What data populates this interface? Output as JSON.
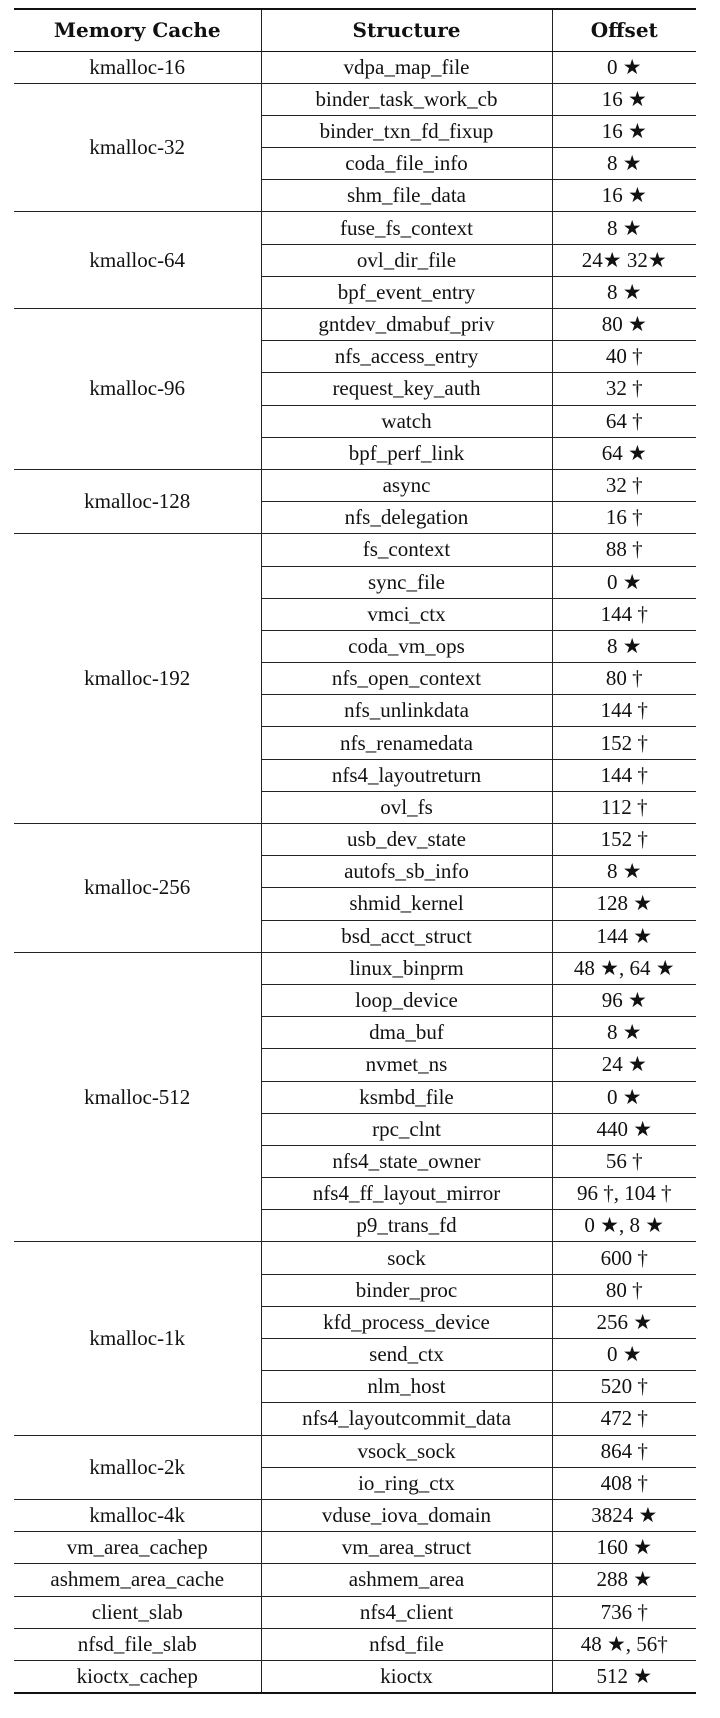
{
  "headers": {
    "cache": "Memory Cache",
    "structure": "Structure",
    "offset": "Offset"
  },
  "groups": [
    {
      "cache": "kmalloc-16",
      "rows": [
        {
          "structure": "vdpa_map_file",
          "offset": "0 ★"
        }
      ]
    },
    {
      "cache": "kmalloc-32",
      "rows": [
        {
          "structure": "binder_task_work_cb",
          "offset": "16 ★"
        },
        {
          "structure": "binder_txn_fd_fixup",
          "offset": "16 ★"
        },
        {
          "structure": "coda_file_info",
          "offset": "8 ★"
        },
        {
          "structure": "shm_file_data",
          "offset": "16 ★"
        }
      ]
    },
    {
      "cache": "kmalloc-64",
      "rows": [
        {
          "structure": "fuse_fs_context",
          "offset": "8 ★"
        },
        {
          "structure": "ovl_dir_file",
          "offset": "24★ 32★"
        },
        {
          "structure": "bpf_event_entry",
          "offset": "8 ★"
        }
      ]
    },
    {
      "cache": "kmalloc-96",
      "rows": [
        {
          "structure": "gntdev_dmabuf_priv",
          "offset": "80 ★"
        },
        {
          "structure": "nfs_access_entry",
          "offset": "40 †"
        },
        {
          "structure": "request_key_auth",
          "offset": "32 †"
        },
        {
          "structure": "watch",
          "offset": "64 †"
        },
        {
          "structure": "bpf_perf_link",
          "offset": "64 ★"
        }
      ]
    },
    {
      "cache": "kmalloc-128",
      "rows": [
        {
          "structure": "async",
          "offset": "32 †"
        },
        {
          "structure": "nfs_delegation",
          "offset": "16 †"
        }
      ]
    },
    {
      "cache": "kmalloc-192",
      "rows": [
        {
          "structure": "fs_context",
          "offset": "88 †"
        },
        {
          "structure": "sync_file",
          "offset": "0 ★"
        },
        {
          "structure": "vmci_ctx",
          "offset": "144 †"
        },
        {
          "structure": "coda_vm_ops",
          "offset": "8 ★"
        },
        {
          "structure": "nfs_open_context",
          "offset": "80 †"
        },
        {
          "structure": "nfs_unlinkdata",
          "offset": "144 †"
        },
        {
          "structure": "nfs_renamedata",
          "offset": "152 †"
        },
        {
          "structure": "nfs4_layoutreturn",
          "offset": "144 †"
        },
        {
          "structure": "ovl_fs",
          "offset": "112 †"
        }
      ]
    },
    {
      "cache": "kmalloc-256",
      "rows": [
        {
          "structure": "usb_dev_state",
          "offset": "152 †"
        },
        {
          "structure": "autofs_sb_info",
          "offset": "8 ★"
        },
        {
          "structure": "shmid_kernel",
          "offset": "128 ★"
        },
        {
          "structure": "bsd_acct_struct",
          "offset": "144 ★"
        }
      ]
    },
    {
      "cache": "kmalloc-512",
      "rows": [
        {
          "structure": "linux_binprm",
          "offset": "48 ★, 64 ★"
        },
        {
          "structure": "loop_device",
          "offset": "96 ★"
        },
        {
          "structure": "dma_buf",
          "offset": "8 ★"
        },
        {
          "structure": "nvmet_ns",
          "offset": "24 ★"
        },
        {
          "structure": "ksmbd_file",
          "offset": "0 ★"
        },
        {
          "structure": "rpc_clnt",
          "offset": "440 ★"
        },
        {
          "structure": "nfs4_state_owner",
          "offset": "56 †"
        },
        {
          "structure": "nfs4_ff_layout_mirror",
          "offset": "96 †, 104 †"
        },
        {
          "structure": "p9_trans_fd",
          "offset": "0 ★, 8 ★"
        }
      ]
    },
    {
      "cache": "kmalloc-1k",
      "rows": [
        {
          "structure": "sock",
          "offset": "600 †"
        },
        {
          "structure": "binder_proc",
          "offset": "80 †"
        },
        {
          "structure": "kfd_process_device",
          "offset": "256 ★"
        },
        {
          "structure": "send_ctx",
          "offset": "0 ★"
        },
        {
          "structure": "nlm_host",
          "offset": "520 †"
        },
        {
          "structure": "nfs4_layoutcommit_data",
          "offset": "472 †"
        }
      ]
    },
    {
      "cache": "kmalloc-2k",
      "rows": [
        {
          "structure": "vsock_sock",
          "offset": "864 †"
        },
        {
          "structure": "io_ring_ctx",
          "offset": "408 †"
        }
      ]
    },
    {
      "cache": "kmalloc-4k",
      "rows": [
        {
          "structure": "vduse_iova_domain",
          "offset": "3824 ★"
        }
      ]
    },
    {
      "cache": "vm_area_cachep",
      "rows": [
        {
          "structure": "vm_area_struct",
          "offset": "160 ★"
        }
      ]
    },
    {
      "cache": "ashmem_area_cache",
      "rows": [
        {
          "structure": "ashmem_area",
          "offset": "288 ★"
        }
      ]
    },
    {
      "cache": "client_slab",
      "rows": [
        {
          "structure": "nfs4_client",
          "offset": "736 †"
        }
      ]
    },
    {
      "cache": "nfsd_file_slab",
      "rows": [
        {
          "structure": "nfsd_file",
          "offset": "48 ★, 56†"
        }
      ]
    },
    {
      "cache": "kioctx_cachep",
      "rows": [
        {
          "structure": "kioctx",
          "offset": "512 ★"
        }
      ]
    }
  ]
}
